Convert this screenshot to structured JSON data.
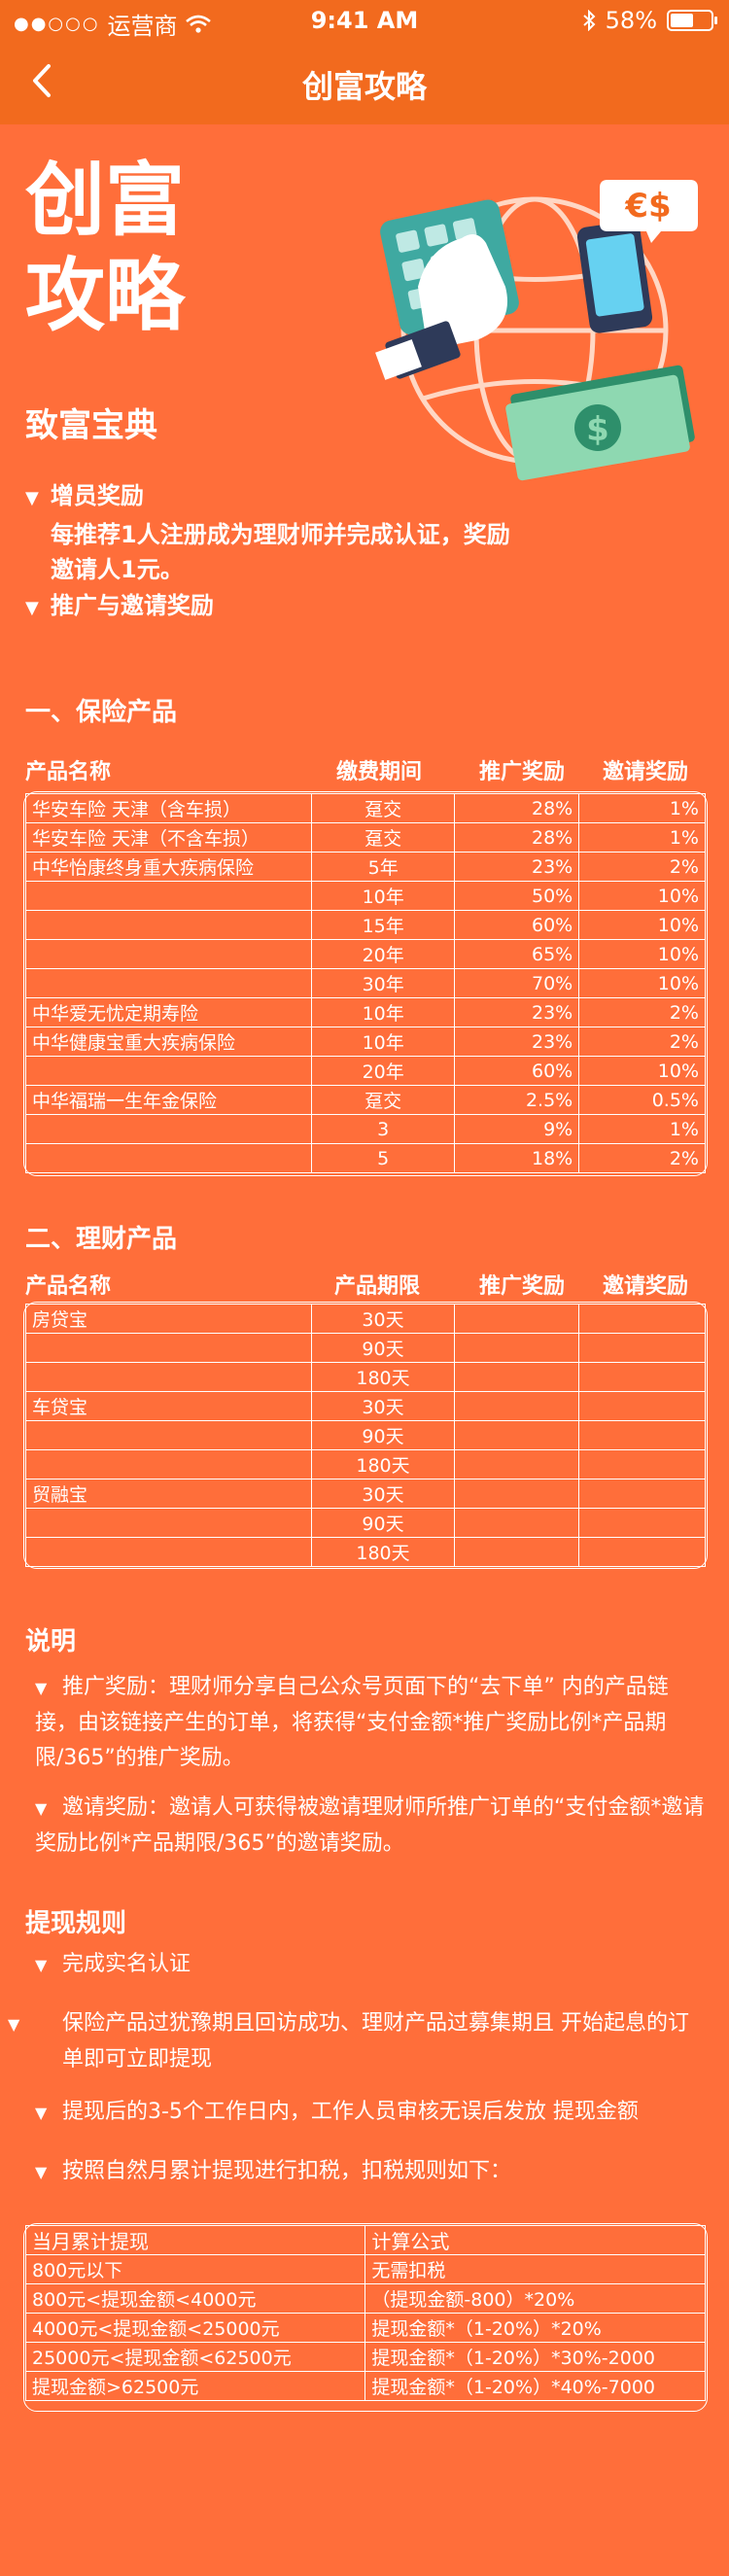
{
  "status": {
    "carrier": "运营商",
    "time": "9:41 AM",
    "battery": "58%",
    "battery_level": 0.58
  },
  "nav": {
    "title": "创富攻略"
  },
  "hero": {
    "line1": "创富",
    "line2": "攻略",
    "currency_badge": "€$",
    "dollar": "$"
  },
  "guide": {
    "title": "致富宝典",
    "item1": "增员奖励",
    "item1_desc_line1": "每推荐1人注册成为理财师并完成认证，奖励",
    "item1_desc_line2": "邀请人1元。",
    "item2": "推广与邀请奖励"
  },
  "insurance": {
    "title": "一、保险产品",
    "headers": {
      "name": "产品名称",
      "period": "缴费期间",
      "promo": "推广奖励",
      "invite": "邀请奖励"
    },
    "rows": [
      {
        "name": "华安车险 天津（含车损）",
        "period": "趸交",
        "promo": "28%",
        "invite": "1%"
      },
      {
        "name": "华安车险 天津（不含车损）",
        "period": "趸交",
        "promo": "28%",
        "invite": "1%"
      },
      {
        "name": "中华怡康终身重大疾病保险",
        "period": "5年",
        "promo": "23%",
        "invite": "2%"
      },
      {
        "name": "",
        "period": "10年",
        "promo": "50%",
        "invite": "10%"
      },
      {
        "name": "",
        "period": "15年",
        "promo": "60%",
        "invite": "10%"
      },
      {
        "name": "",
        "period": "20年",
        "promo": "65%",
        "invite": "10%"
      },
      {
        "name": "",
        "period": "30年",
        "promo": "70%",
        "invite": "10%"
      },
      {
        "name": "中华爱无忧定期寿险",
        "period": "10年",
        "promo": "23%",
        "invite": "2%"
      },
      {
        "name": "中华健康宝重大疾病保险",
        "period": "10年",
        "promo": "23%",
        "invite": "2%"
      },
      {
        "name": "",
        "period": "20年",
        "promo": "60%",
        "invite": "10%"
      },
      {
        "name": "中华福瑞一生年金保险",
        "period": "趸交",
        "promo": "2.5%",
        "invite": "0.5%"
      },
      {
        "name": "",
        "period": "3",
        "promo": "9%",
        "invite": "1%"
      },
      {
        "name": "",
        "period": "5",
        "promo": "18%",
        "invite": "2%"
      }
    ]
  },
  "finance": {
    "title": "二、理财产品",
    "headers": {
      "name": "产品名称",
      "period": "产品期限",
      "promo": "推广奖励",
      "invite": "邀请奖励"
    },
    "groups": [
      {
        "name": "房贷宝",
        "periods": [
          "30天",
          "90天",
          "180天"
        ]
      },
      {
        "name": "车贷宝",
        "periods": [
          "30天",
          "90天",
          "180天"
        ]
      },
      {
        "name": "贸融宝",
        "periods": [
          "30天",
          "90天",
          "180天"
        ]
      }
    ]
  },
  "explain": {
    "title": "说明",
    "promo_label": "推广奖励：",
    "promo_text": "理财师分享自己公众号页面下的“去下单” 内的产品链接，由该链接产生的订单，将获得“支付金额*推广奖励比例*产品期限/365”的推广奖励。",
    "invite_label": "邀请奖励：",
    "invite_text": "邀请人可获得被邀请理财师所推广订单的“支付金额*邀请奖励比例*产品期限/365”的邀请奖励。"
  },
  "withdraw": {
    "title": "提现规则",
    "rules": [
      "完成实名认证",
      "保险产品过犹豫期且回访成功、理财产品过募集期且 开始起息的订单即可立即提现",
      "提现后的3-5个工作日内，工作人员审核无误后发放 提现金额",
      "按照自然月累计提现进行扣税，扣税规则如下："
    ],
    "tax_headers": {
      "amount": "当月累计提现",
      "formula": "计算公式"
    },
    "tax_rows": [
      {
        "amount": "800元以下",
        "formula": "无需扣税"
      },
      {
        "amount": "800元<提现金额<4000元",
        "formula": "（提现金额-800）*20%"
      },
      {
        "amount": "4000元<提现金额<25000元",
        "formula": "提现金额*（1-20%）*20%"
      },
      {
        "amount": "25000元<提现金额<62500元",
        "formula": "提现金额*（1-20%）*30%-2000"
      },
      {
        "amount": "提现金额>62500元",
        "formula": "提现金额*（1-20%）*40%-7000"
      }
    ]
  }
}
